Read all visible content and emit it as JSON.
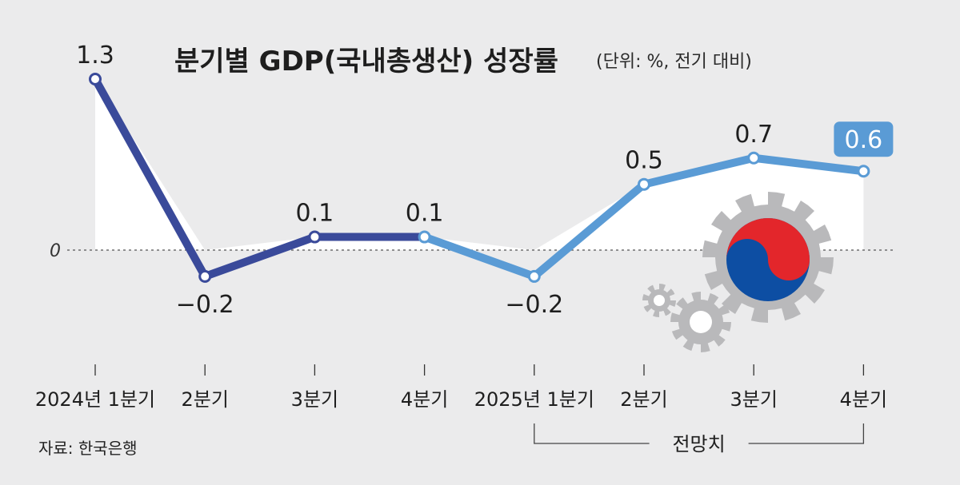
{
  "chart_data": {
    "type": "line",
    "title": "분기별 GDP(국내총생산) 성장률",
    "unit_note": "(단위: %, 전기 대비)",
    "categories": [
      "2024년 1분기",
      "2분기",
      "3분기",
      "4분기",
      "2025년 1분기",
      "2분기",
      "3분기",
      "4분기"
    ],
    "values": [
      1.3,
      -0.2,
      0.1,
      0.1,
      -0.2,
      0.5,
      0.7,
      0.6
    ],
    "value_labels": [
      "1.3",
      "−0.2",
      "0.1",
      "0.1",
      "−0.2",
      "0.5",
      "0.7",
      "0.6"
    ],
    "zero_label": "0",
    "forecast_label": "전망치",
    "forecast_range": [
      5,
      7
    ],
    "highlight_index": 7,
    "ylim": [
      -0.35,
      1.45
    ],
    "grid": false,
    "colors": {
      "actual": "#3a4a9a",
      "forecast": "#5a9bd5",
      "highlight_box": "#5a9bd5",
      "area": "#ffffff",
      "background": "#ebebec"
    }
  },
  "source": "자료: 한국은행",
  "illustration": "gear-with-taegeuk-icon"
}
